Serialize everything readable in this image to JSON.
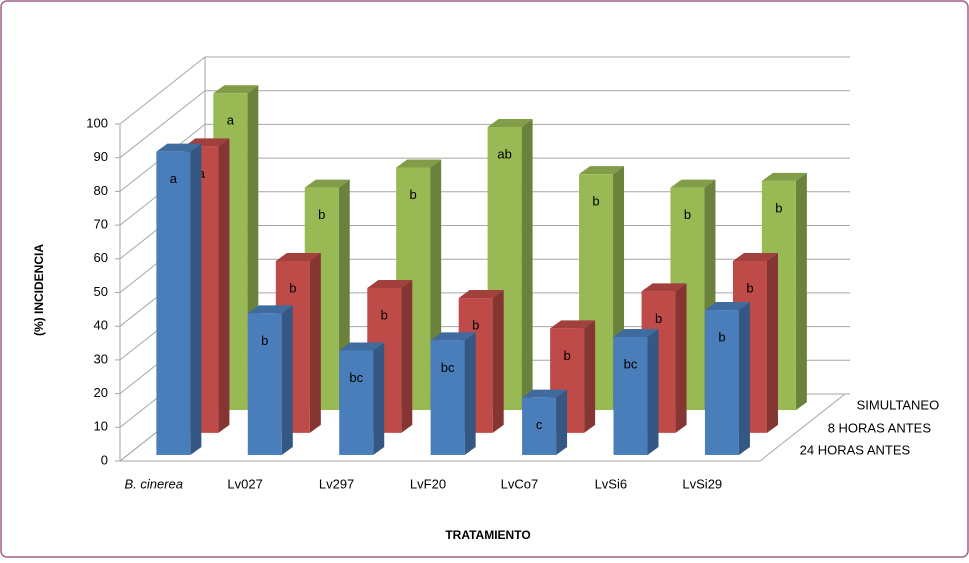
{
  "chart_data": {
    "type": "bar3d",
    "y_label": "(%) INCIDENCIA",
    "x_label": "TRATAMIENTO",
    "categories": [
      "B. cinerea",
      "Lv027",
      "Lv297",
      "LvF20",
      "LvCo7",
      "LvSi6",
      "LvSi29"
    ],
    "series": [
      {
        "name": "24 HORAS ANTES",
        "color": "#4a7ebb",
        "values": [
          90,
          42,
          31,
          34,
          17,
          35,
          43
        ],
        "letters": [
          "a",
          "b",
          "bc",
          "bc",
          "c",
          "bc",
          "b"
        ]
      },
      {
        "name": "8 HORAS ANTES",
        "color": "#be4b48",
        "values": [
          85,
          51,
          43,
          40,
          31,
          42,
          51
        ],
        "letters": [
          "a",
          "b",
          "b",
          "b",
          "b",
          "b",
          "b"
        ]
      },
      {
        "name": "SIMULTANEO",
        "color": "#98b954",
        "values": [
          94,
          66,
          72,
          84,
          70,
          66,
          68
        ],
        "letters": [
          "a",
          "b",
          "b",
          "ab",
          "b",
          "b",
          "b"
        ]
      }
    ],
    "ylim": [
      0,
      100
    ],
    "yticks": [
      0,
      10,
      20,
      30,
      40,
      50,
      60,
      70,
      80,
      90,
      100
    ],
    "grid": true
  }
}
